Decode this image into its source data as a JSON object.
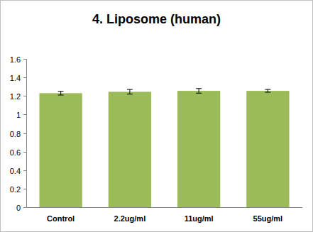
{
  "chart_data": {
    "type": "bar",
    "title": "4. Liposome (human)",
    "categories": [
      "Control",
      "2.2ug/ml",
      "11ug/ml",
      "55ug/ml"
    ],
    "values": [
      1.23,
      1.245,
      1.255,
      1.255
    ],
    "errors": [
      0.02,
      0.025,
      0.025,
      0.015
    ],
    "color": "#9bbb59",
    "ylim": [
      0,
      1.6
    ],
    "yticks": [
      0,
      0.2,
      0.4,
      0.6,
      0.8,
      1,
      1.2,
      1.4,
      1.6
    ],
    "grid": false
  }
}
